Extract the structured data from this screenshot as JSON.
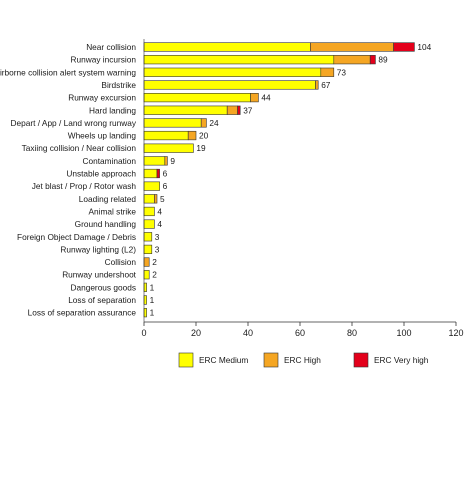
{
  "chart_data": {
    "type": "bar",
    "orientation": "horizontal",
    "stacked": true,
    "title": "",
    "xlabel": "",
    "ylabel": "",
    "xlim": [
      0,
      120
    ],
    "xticks": [
      0,
      20,
      40,
      60,
      80,
      100,
      120
    ],
    "grid": false,
    "legend_position": "bottom",
    "categories": [
      "Near collision",
      "Runway incursion",
      "Airborne collision alert system warning",
      "Birdstrike",
      "Runway excursion",
      "Hard landing",
      "Depart / App / Land wrong runway",
      "Wheels up landing",
      "Taxiing collision / Near collision",
      "Contamination",
      "Unstable approach",
      "Jet blast / Prop / Rotor wash",
      "Loading related",
      "Animal strike",
      "Ground handling",
      "Foreign Object Damage / Debris",
      "Runway lighting (L2)",
      "Collision",
      "Runway undershoot",
      "Dangerous goods",
      "Loss of separation",
      "Loss of separation assurance"
    ],
    "totals": [
      104,
      89,
      73,
      67,
      44,
      37,
      24,
      20,
      19,
      9,
      6,
      6,
      5,
      4,
      4,
      3,
      3,
      2,
      2,
      1,
      1,
      1
    ],
    "series": [
      {
        "name": "ERC Medium",
        "color": "#ffff00",
        "values": [
          64,
          73,
          68,
          66,
          41,
          32,
          22,
          17,
          19,
          8,
          5,
          6,
          4,
          4,
          4,
          3,
          3,
          0,
          2,
          1,
          1,
          1
        ]
      },
      {
        "name": "ERC High",
        "color": "#f5a623",
        "values": [
          32,
          14,
          5,
          1,
          3,
          4,
          2,
          3,
          0,
          1,
          0,
          0,
          1,
          0,
          0,
          0,
          0,
          2,
          0,
          0,
          0,
          0
        ]
      },
      {
        "name": "ERC Very high",
        "color": "#e3001b",
        "values": [
          8,
          2,
          0,
          0,
          0,
          1,
          0,
          0,
          0,
          0,
          1,
          0,
          0,
          0,
          0,
          0,
          0,
          0,
          0,
          0,
          0,
          0
        ]
      }
    ]
  }
}
